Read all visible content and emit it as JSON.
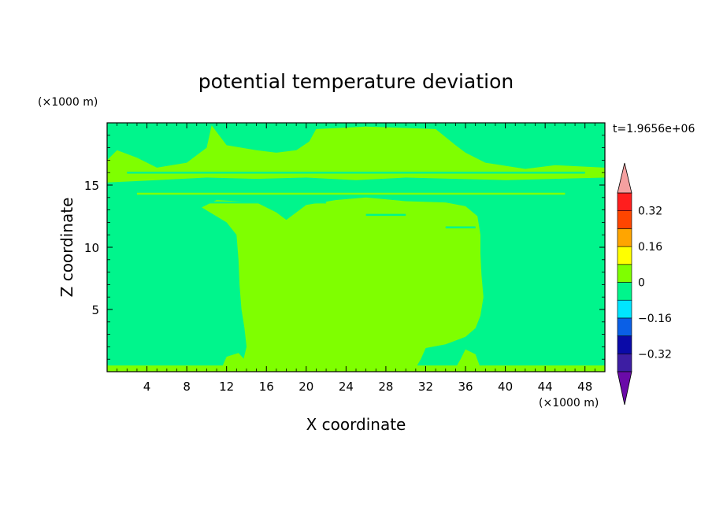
{
  "chart_data": {
    "type": "heatmap",
    "title": "potential temperature deviation",
    "xlabel": "X coordinate",
    "ylabel": "Z coordinate",
    "x_unit": "(×1000 m)",
    "z_unit": "(×1000 m)",
    "time_label": "t=1.9656e+06",
    "xlim": [
      0,
      50
    ],
    "ylim": [
      0,
      20
    ],
    "x_ticks": [
      4,
      8,
      12,
      16,
      20,
      24,
      28,
      32,
      36,
      40,
      44,
      48
    ],
    "y_ticks": [
      5,
      10,
      15
    ],
    "colorbar": {
      "levels": [
        -0.4,
        -0.32,
        -0.24,
        -0.16,
        -0.08,
        0,
        0.08,
        0.16,
        0.24,
        0.32,
        0.4
      ],
      "labels": [
        {
          "value": 0.32,
          "text": "0.32"
        },
        {
          "value": 0.16,
          "text": "0.16"
        },
        {
          "value": 0,
          "text": "0"
        },
        {
          "value": -0.16,
          "text": "−0.16"
        },
        {
          "value": -0.32,
          "text": "−0.32"
        }
      ],
      "colors": [
        "#3d1ea3",
        "#0a0aa8",
        "#0a5fe6",
        "#00e5ff",
        "#00f58c",
        "#7fff00",
        "#ffff00",
        "#ffa500",
        "#ff4500",
        "#ff1e1e"
      ],
      "over_color": "#f4a0a0",
      "under_color": "#6a0aa8"
    },
    "background_class": {
      "range": [
        -0.08,
        0
      ],
      "color": "#00f58c"
    },
    "regions": [
      {
        "name": "central warm column",
        "range": [
          0,
          0.08
        ],
        "color": "#7fff00",
        "outline": [
          [
            13.5,
            0.3
          ],
          [
            14,
            2
          ],
          [
            13.8,
            3.5
          ],
          [
            13.5,
            5
          ],
          [
            13.3,
            7
          ],
          [
            13.2,
            9
          ],
          [
            13,
            11
          ],
          [
            12,
            12
          ],
          [
            9.5,
            13.2
          ],
          [
            11,
            13.8
          ],
          [
            15,
            13.6
          ],
          [
            17,
            12.8
          ],
          [
            18,
            12.2
          ],
          [
            20,
            13.4
          ],
          [
            23,
            13.8
          ],
          [
            26,
            14
          ],
          [
            30,
            13.7
          ],
          [
            34,
            13.6
          ],
          [
            36,
            13.3
          ],
          [
            37.2,
            12.5
          ],
          [
            37.5,
            11
          ],
          [
            37.5,
            9.5
          ],
          [
            37.6,
            7.8
          ],
          [
            37.8,
            6
          ],
          [
            37.5,
            4.5
          ],
          [
            37,
            3.5
          ],
          [
            36,
            2.8
          ],
          [
            34,
            2.2
          ],
          [
            32,
            1.9
          ],
          [
            31.5,
            1
          ],
          [
            31,
            0.3
          ]
        ]
      },
      {
        "name": "upper warm band",
        "range": [
          0,
          0.08
        ],
        "color": "#7fff00",
        "outline": [
          [
            0,
            15.2
          ],
          [
            5,
            15.4
          ],
          [
            10,
            15.6
          ],
          [
            15,
            15.5
          ],
          [
            20,
            15.6
          ],
          [
            25,
            15.4
          ],
          [
            30,
            15.6
          ],
          [
            35,
            15.5
          ],
          [
            40,
            15.4
          ],
          [
            45,
            15.5
          ],
          [
            50,
            15.6
          ],
          [
            50,
            16.4
          ],
          [
            45,
            16.6
          ],
          [
            42,
            16.3
          ],
          [
            38,
            16.8
          ],
          [
            36,
            17.6
          ],
          [
            35,
            18.2
          ],
          [
            33,
            19.5
          ],
          [
            26,
            19.7
          ],
          [
            21,
            19.5
          ],
          [
            20.3,
            18.5
          ],
          [
            19,
            17.8
          ],
          [
            17,
            17.6
          ],
          [
            15,
            17.8
          ],
          [
            12,
            18.2
          ],
          [
            10.5,
            19.8
          ],
          [
            10,
            18
          ],
          [
            8,
            16.8
          ],
          [
            5,
            16.4
          ],
          [
            3,
            17.2
          ],
          [
            1,
            17.8
          ],
          [
            0,
            17
          ]
        ]
      },
      {
        "name": "surface warm layer",
        "range": [
          0,
          0.08
        ],
        "color": "#7fff00",
        "outline": [
          [
            0,
            0
          ],
          [
            50,
            0
          ],
          [
            50,
            0.5
          ],
          [
            0,
            0.5
          ]
        ]
      },
      {
        "name": "left lower warm blob",
        "range": [
          0,
          0.08
        ],
        "color": "#7fff00",
        "outline": [
          [
            11.5,
            0.3
          ],
          [
            12,
            1.2
          ],
          [
            13.2,
            1.5
          ],
          [
            14,
            0.8
          ],
          [
            14,
            0.3
          ]
        ]
      },
      {
        "name": "right lower warm blob",
        "range": [
          0,
          0.08
        ],
        "color": "#7fff00",
        "outline": [
          [
            35,
            0.3
          ],
          [
            35.5,
            1
          ],
          [
            36,
            1.8
          ],
          [
            37,
            1.4
          ],
          [
            37.5,
            0.3
          ]
        ]
      }
    ],
    "streaks": [
      {
        "y": 15.1,
        "x": [
          0,
          50
        ],
        "range": [
          -0.08,
          0
        ],
        "color": "#00f58c"
      },
      {
        "y": 14.7,
        "x": [
          0,
          50
        ],
        "range": [
          -0.08,
          0
        ],
        "color": "#00f58c"
      },
      {
        "y": 16.0,
        "x": [
          2,
          48
        ],
        "range": [
          -0.08,
          0
        ],
        "color": "#00f58c"
      },
      {
        "y": 14.3,
        "x": [
          3,
          46
        ],
        "range": [
          0,
          0.08
        ],
        "color": "#7fff00"
      },
      {
        "y": 13.6,
        "x": [
          6,
          22
        ],
        "range": [
          -0.08,
          0
        ],
        "color": "#00f58c"
      },
      {
        "y": 12.6,
        "x": [
          26,
          30
        ],
        "range": [
          -0.08,
          0
        ],
        "color": "#00f58c"
      },
      {
        "y": 11.6,
        "x": [
          34,
          37
        ],
        "range": [
          -0.08,
          0
        ],
        "color": "#00f58c"
      }
    ]
  }
}
